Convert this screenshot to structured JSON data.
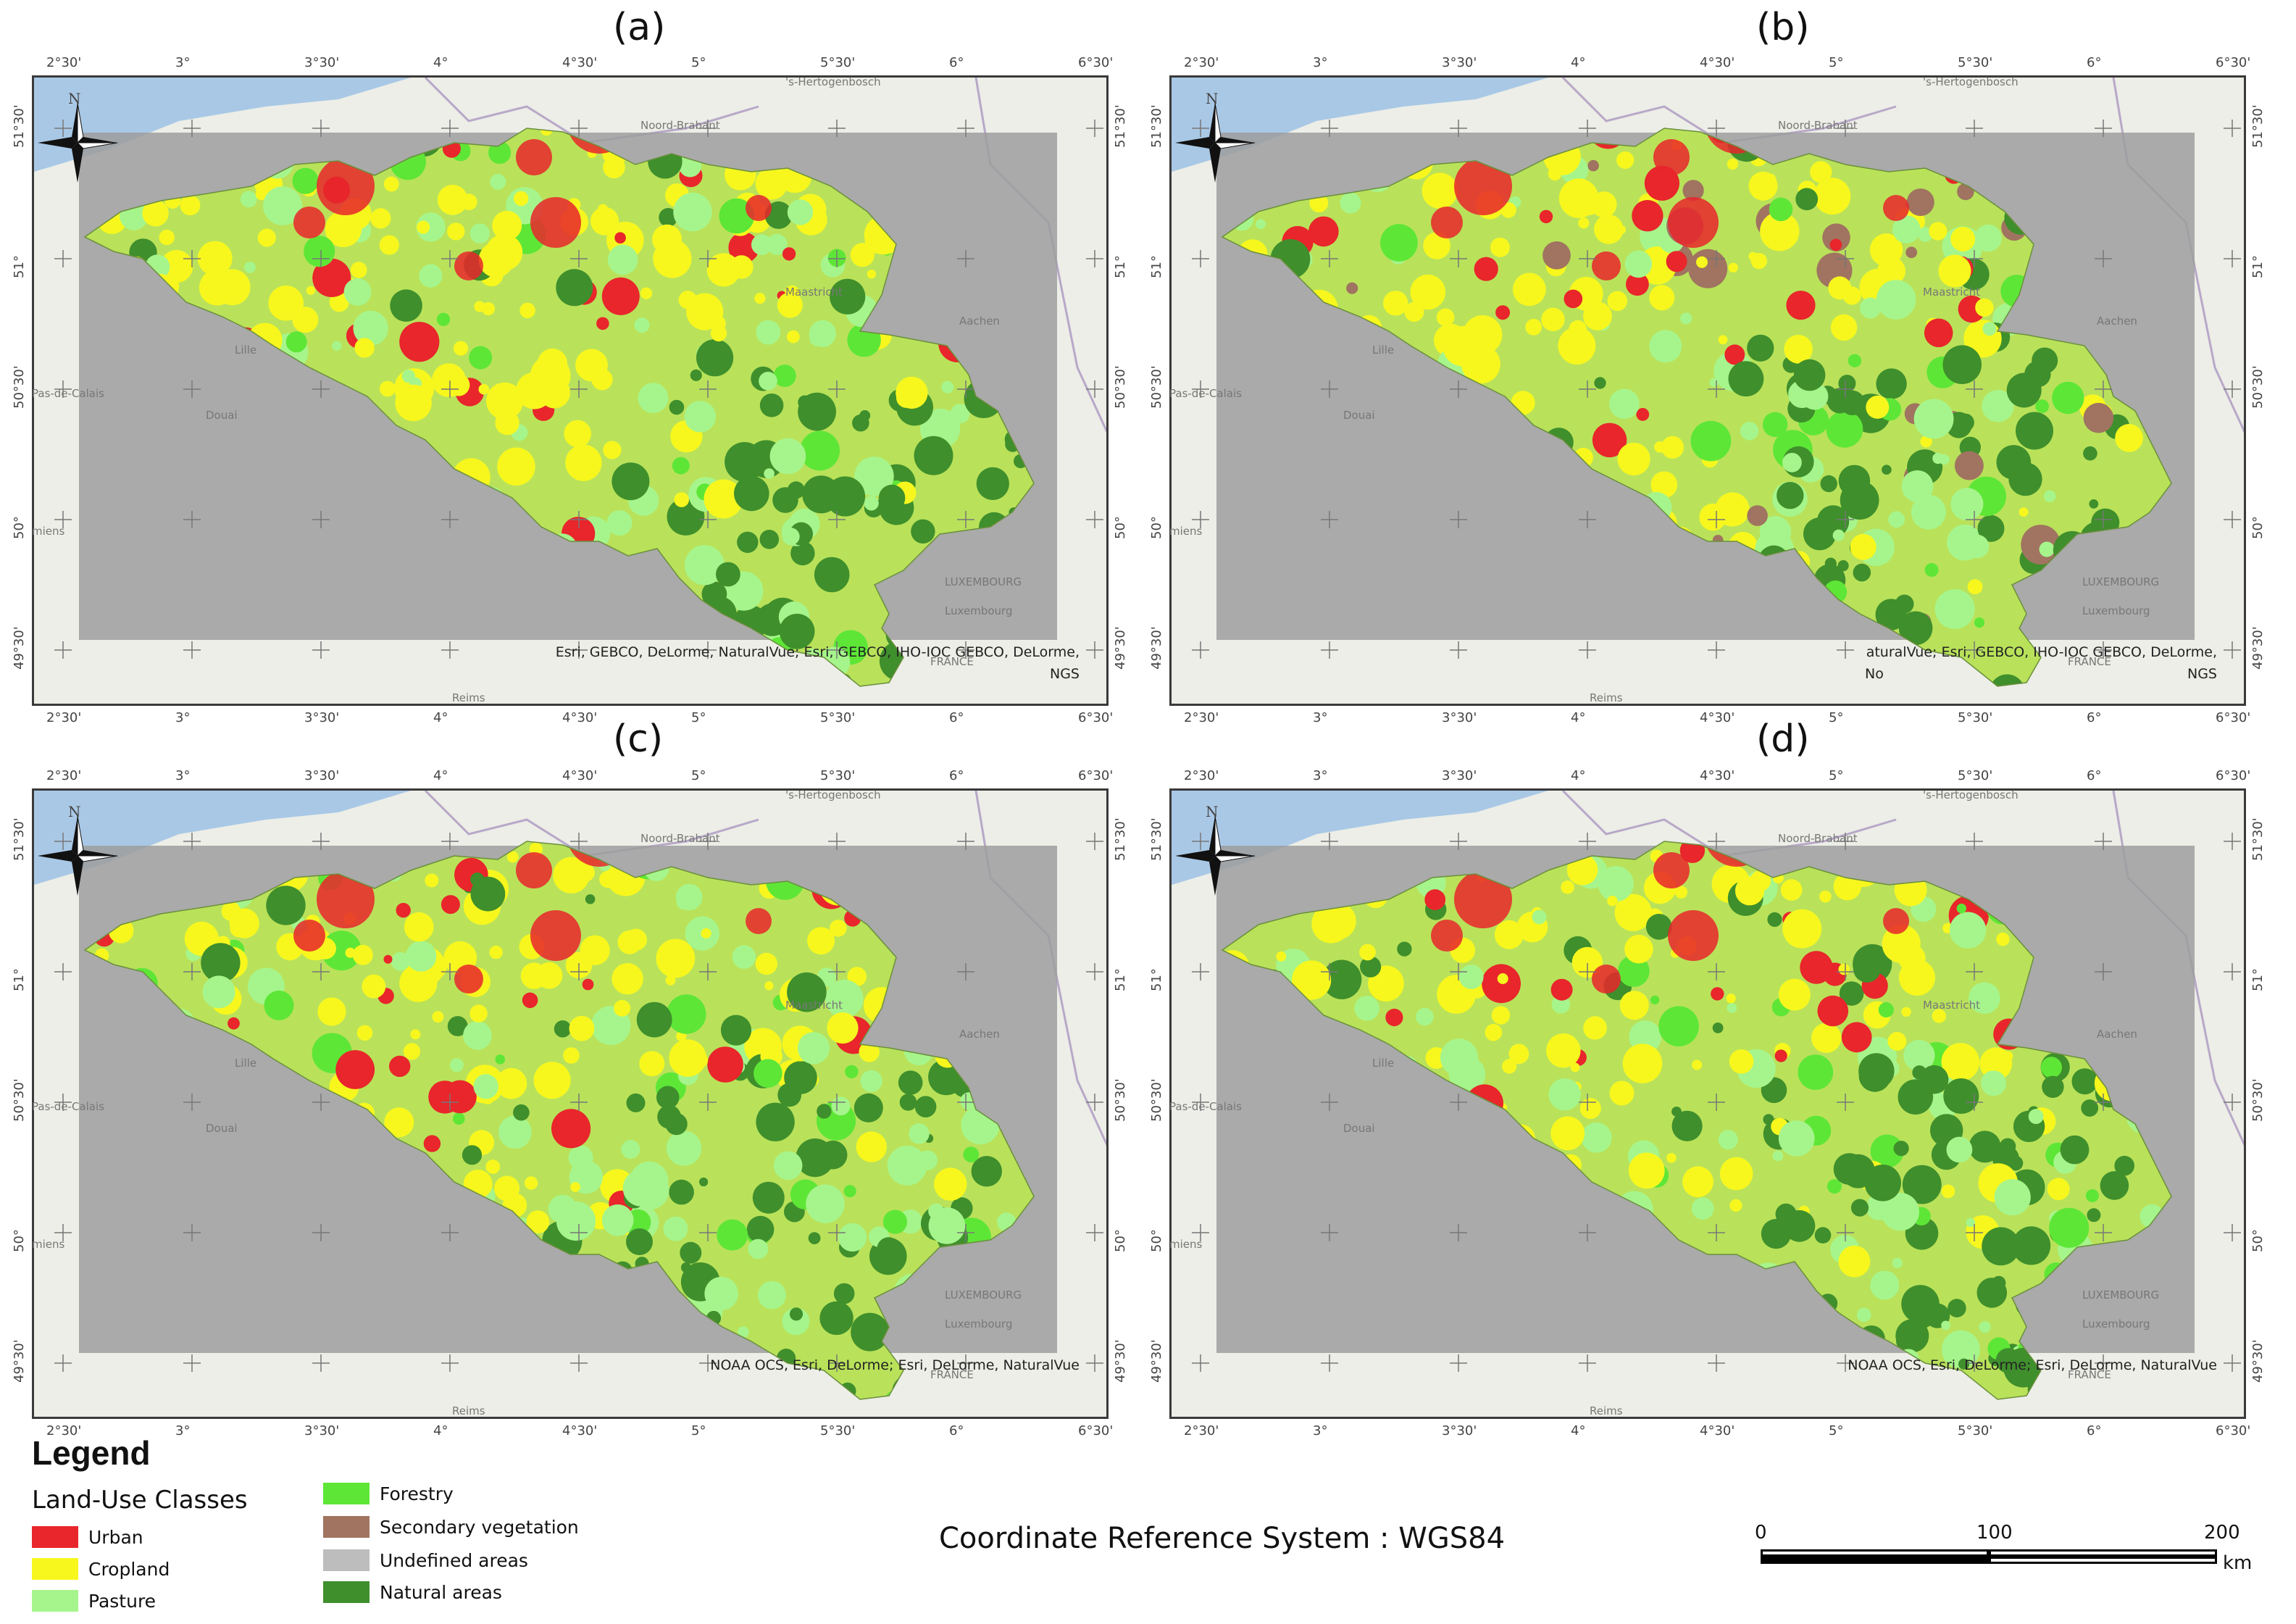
{
  "panels": [
    {
      "label": "(a)",
      "credit_line1": "Esri, GEBCO, DeLorme, NaturalVue; Esri, GEBCO, IHO-IOC GEBCO, DeLorme,",
      "credit_line2": "NGS"
    },
    {
      "label": "(b)",
      "credit_line1": "aturalVue; Esri, GEBCO, IHO-IOC GEBCO, DeLorme,",
      "credit_line2": "NGS"
    },
    {
      "label": "(c)",
      "credit_line1": "NOAA OCS, Esri, DeLorme; Esri, DeLorme, NaturalVue",
      "credit_line2": ""
    },
    {
      "label": "(d)",
      "credit_line1": "NOAA OCS, Esri, DeLorme; Esri, DeLorme, NaturalVue",
      "credit_line2": ""
    }
  ],
  "north_label": "N",
  "lon_ticks": [
    "2°30'",
    "3°",
    "3°30'",
    "4°",
    "4°30'",
    "5°",
    "5°30'",
    "6°",
    "6°30'"
  ],
  "lat_ticks": [
    "51°30'",
    "51°",
    "50°30'",
    "50°",
    "49°30'"
  ],
  "basemap_places": {
    "hertogenbosch": "'s-Hertogenbosch",
    "noord_brabant": "Noord-Brabant",
    "maastricht": "Maastricht",
    "aachen": "Aachen",
    "lille": "Lille",
    "pas_de_calais": "Pas-de-Calais",
    "douai": "Douai",
    "amiens": "miens",
    "reims": "Reims",
    "luxembourg_country": "LUXEMBOURG",
    "luxembourg_city": "Luxembourg",
    "france": "FRANCE",
    "nord": "No"
  },
  "legend": {
    "title": "Legend",
    "subtitle": "Land-Use Classes",
    "classes": [
      {
        "label": "Urban",
        "color": "#e8262b"
      },
      {
        "label": "Cropland",
        "color": "#f7f71e"
      },
      {
        "label": "Pasture",
        "color": "#a6f58c"
      },
      {
        "label": "Forestry",
        "color": "#5ee637"
      },
      {
        "label": "Secondary vegetation",
        "color": "#a07460"
      },
      {
        "label": "Undefined areas",
        "color": "#bdbdbd"
      },
      {
        "label": "Natural areas",
        "color": "#3f8f2c"
      }
    ]
  },
  "crs_text": "Coordinate Reference System : WGS84",
  "scale_bar": {
    "labels": [
      "0",
      "100",
      "200"
    ],
    "unit": "km"
  },
  "colors": {
    "sea": "#a9c8e6",
    "land_base": "#e9ebe4",
    "overlay_gray": "#9e9e9e",
    "frame": "#3a3a3a"
  }
}
